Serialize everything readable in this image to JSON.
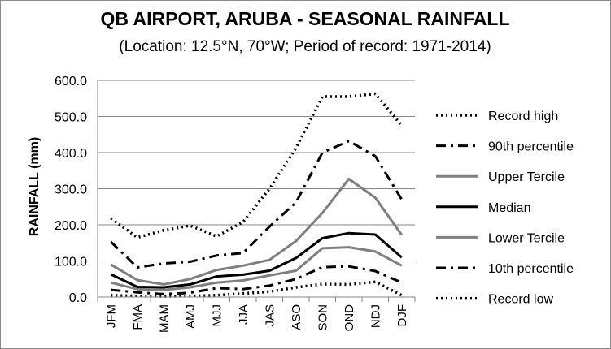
{
  "chart_data": {
    "type": "line",
    "title": "QB AIRPORT, ARUBA - SEASONAL RAINFALL",
    "subtitle": "(Location: 12.5°N, 70°W; Period of record: 1971-2014)",
    "ylabel": "RAINFALL (mm)",
    "xlabel": "",
    "ylim": [
      0,
      600
    ],
    "yticks": [
      "0.0",
      "100.0",
      "200.0",
      "300.0",
      "400.0",
      "500.0",
      "600.0"
    ],
    "categories": [
      "JFM",
      "FMA",
      "MAM",
      "AMJ",
      "MJJ",
      "JJA",
      "JAS",
      "ASO",
      "SON",
      "OND",
      "NDJ",
      "DJF"
    ],
    "grid": true,
    "legend_position": "right",
    "series": [
      {
        "name": "Record high",
        "color": "#000000",
        "style": "dotted",
        "values": [
          218,
          165,
          185,
          198,
          168,
          208,
          300,
          413,
          555,
          555,
          563,
          475
        ]
      },
      {
        "name": "90th percentile",
        "color": "#000000",
        "style": "dashdot",
        "values": [
          153,
          82,
          93,
          98,
          115,
          122,
          195,
          262,
          400,
          432,
          390,
          270
        ]
      },
      {
        "name": "Upper Tercile",
        "color": "#7f7f7f",
        "style": "solid",
        "values": [
          90,
          47,
          35,
          50,
          75,
          87,
          103,
          155,
          233,
          327,
          275,
          172
        ]
      },
      {
        "name": "Median",
        "color": "#000000",
        "style": "solid",
        "values": [
          63,
          28,
          27,
          35,
          57,
          62,
          73,
          108,
          163,
          177,
          173,
          110
        ]
      },
      {
        "name": "Lower Tercile",
        "color": "#7f7f7f",
        "style": "solid",
        "values": [
          40,
          22,
          20,
          27,
          40,
          46,
          60,
          73,
          135,
          138,
          126,
          87
        ]
      },
      {
        "name": "10th percentile",
        "color": "#000000",
        "style": "dashdot",
        "values": [
          20,
          13,
          8,
          12,
          25,
          22,
          32,
          50,
          83,
          85,
          72,
          40
        ]
      },
      {
        "name": "Record low",
        "color": "#000000",
        "style": "dotted",
        "values": [
          5,
          3,
          2,
          3,
          5,
          10,
          15,
          27,
          36,
          35,
          42,
          5
        ]
      }
    ]
  }
}
